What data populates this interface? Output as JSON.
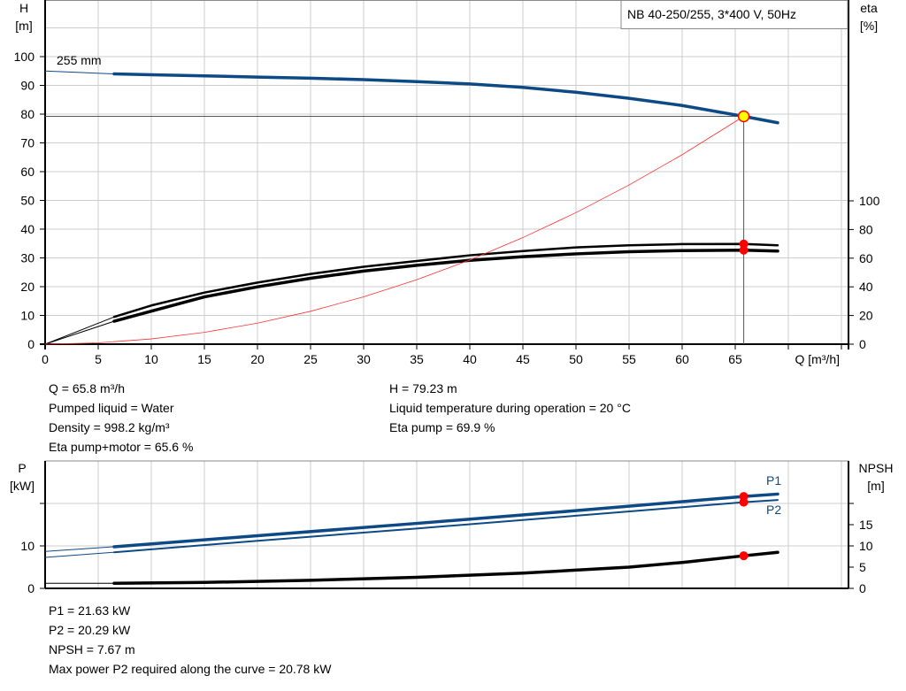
{
  "chart_data": [
    {
      "type": "line",
      "title": "NB 40-250/255, 3*400 V, 50Hz",
      "xlabel": "Q [m³/h]",
      "ylabel": "H\n[m]",
      "ylabel_lines": [
        "H",
        "[m]"
      ],
      "y2label_lines": [
        "eta",
        "[%]"
      ],
      "xlim": [
        0,
        75
      ],
      "ylim": [
        0,
        120
      ],
      "y2lim": [
        0,
        100
      ],
      "grid": true,
      "x_ticks": [
        "0",
        "5",
        "10",
        "15",
        "20",
        "25",
        "30",
        "35",
        "40",
        "45",
        "50",
        "55",
        "60",
        "65"
      ],
      "y_ticks": [
        "0",
        "10",
        "20",
        "30",
        "40",
        "50",
        "60",
        "70",
        "80",
        "90",
        "100"
      ],
      "y2_ticks": [
        "0",
        "20",
        "40",
        "60",
        "80",
        "100"
      ],
      "curve_label": "255 mm",
      "series": [
        {
          "id": "head",
          "axis": "left",
          "color": "#0d4a85",
          "x": [
            6.5,
            10,
            15,
            20,
            25,
            30,
            35,
            40,
            45,
            50,
            55,
            60,
            65.8,
            69
          ],
          "y": [
            94,
            93.7,
            93.3,
            92.9,
            92.5,
            92,
            91.3,
            90.5,
            89.3,
            87.6,
            85.5,
            83,
            79.23,
            77
          ],
          "extension": {
            "x": [
              0,
              6.5
            ],
            "y": [
              95,
              94
            ]
          }
        },
        {
          "id": "eta-pump",
          "axis": "right",
          "color": "#000000",
          "x": [
            6.5,
            10,
            15,
            20,
            25,
            30,
            35,
            40,
            45,
            50,
            55,
            60,
            65.8,
            69
          ],
          "y": [
            19,
            27,
            36,
            43,
            49,
            54,
            58,
            62,
            65,
            67.5,
            69,
            69.8,
            69.9,
            69
          ],
          "extension": {
            "x": [
              0,
              6.5
            ],
            "y": [
              0,
              19
            ]
          }
        },
        {
          "id": "eta-pump-motor",
          "axis": "right",
          "color": "#000000",
          "x": [
            6.5,
            10,
            15,
            20,
            25,
            30,
            35,
            40,
            45,
            50,
            55,
            60,
            65.8,
            69
          ],
          "y": [
            16,
            23,
            33,
            40,
            46,
            51,
            55,
            58.5,
            61,
            63,
            64.5,
            65.3,
            65.6,
            65
          ],
          "extension": {
            "x": [
              0,
              6.5
            ],
            "y": [
              0,
              16
            ]
          }
        },
        {
          "id": "system-curve",
          "axis": "left",
          "color": "#ff3030",
          "x": [
            0,
            5,
            10,
            15,
            20,
            25,
            30,
            35,
            40,
            45,
            50,
            55,
            60,
            65.8
          ],
          "y": [
            0,
            0.46,
            1.83,
            4.12,
            7.32,
            11.44,
            16.47,
            22.42,
            29.28,
            37.06,
            45.75,
            55.36,
            65.88,
            79.23
          ]
        }
      ],
      "duty_point": {
        "q": 65.8,
        "h": 79.23,
        "eta_pump": 69.9,
        "eta_pump_motor": 65.6
      }
    },
    {
      "type": "line",
      "ylabel_lines": [
        "P",
        "[kW]"
      ],
      "y2label_lines": [
        "NPSH",
        "[m]"
      ],
      "xlim": [
        0,
        75
      ],
      "ylim": [
        0,
        30
      ],
      "y2lim": [
        0,
        30
      ],
      "grid": true,
      "y_ticks": [
        "0",
        "10"
      ],
      "y2_ticks": [
        "0",
        "5",
        "10",
        "15"
      ],
      "series": [
        {
          "id": "p1",
          "name": "P1",
          "axis": "left",
          "color": "#0d4a85",
          "x": [
            6.5,
            20,
            35,
            50,
            65.8,
            69
          ],
          "y": [
            9.8,
            12.4,
            15.3,
            18.3,
            21.63,
            22.2
          ],
          "extension": {
            "x": [
              0,
              6.5
            ],
            "y": [
              8.7,
              9.8
            ]
          }
        },
        {
          "id": "p2",
          "name": "P2",
          "axis": "left",
          "color": "#0d4a85",
          "x": [
            6.5,
            20,
            35,
            50,
            65.8,
            69
          ],
          "y": [
            8.5,
            11.2,
            14.1,
            17.1,
            20.29,
            20.8
          ],
          "extension": {
            "x": [
              0,
              6.5
            ],
            "y": [
              7.3,
              8.5
            ]
          }
        },
        {
          "id": "npsh",
          "axis": "right",
          "color": "#000000",
          "x": [
            6.5,
            15,
            25,
            35,
            45,
            55,
            60,
            65.8,
            69
          ],
          "y": [
            1.2,
            1.4,
            1.9,
            2.6,
            3.6,
            5.0,
            6.1,
            7.67,
            8.5
          ],
          "extension": {
            "x": [
              0,
              6.5
            ],
            "y": [
              1.2,
              1.2
            ]
          }
        }
      ],
      "duty_point": {
        "q": 65.8,
        "p1": 21.63,
        "p2": 20.29,
        "npsh": 7.67
      }
    }
  ],
  "info_top": {
    "left": [
      "Q = 65.8 m³/h",
      "Pumped liquid = Water",
      "Density = 998.2 kg/m³",
      "Eta pump+motor = 65.6 %"
    ],
    "right": [
      "H = 79.23 m",
      "Liquid temperature during operation = 20 °C",
      "Eta pump = 69.9 %"
    ]
  },
  "info_bottom": [
    "P1 = 21.63 kW",
    "P2 = 20.29 kW",
    "NPSH = 7.67 m",
    "Max power P2 required along the curve = 20.78 kW"
  ],
  "colors": {
    "head": "#0d4a85",
    "power": "#0d4a85",
    "eta": "#000000",
    "system": "#ff3030",
    "marker": "#ff0000",
    "duty_fill": "#ffff00",
    "grid": "#cccccc"
  }
}
